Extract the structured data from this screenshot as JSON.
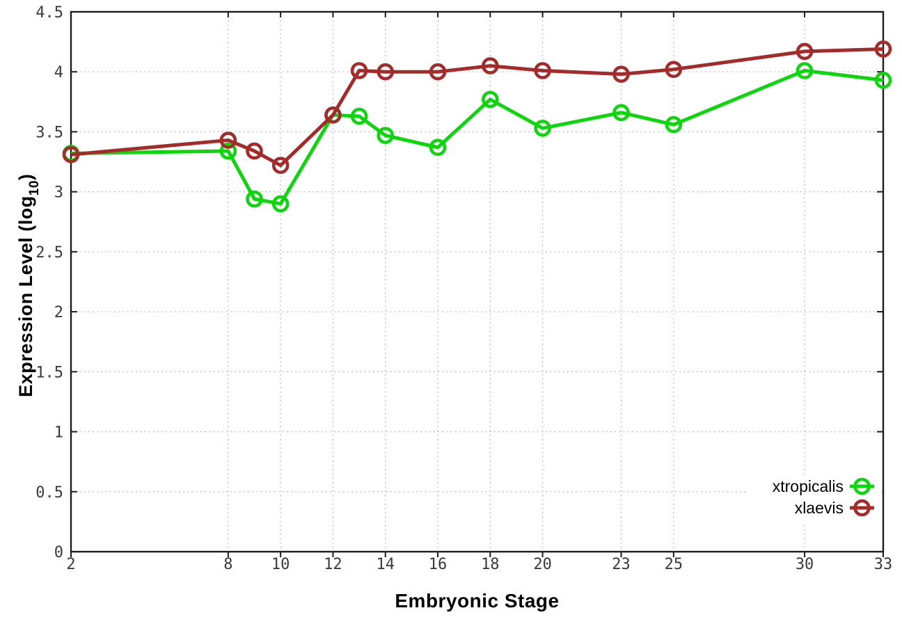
{
  "figure": {
    "xlabel": "Embryonic Stage",
    "ylabel_prefix": "Expression Level (log",
    "ylabel_sub": "10",
    "ylabel_suffix": ")"
  },
  "colors": {
    "xtropicalis": "#0cd60c",
    "xlaevis": "#a52a2a",
    "grid": "#b8b8b8",
    "border": "#1c1c1c",
    "tick_text": "#3a3a3a",
    "legend_text": "#000000",
    "background": "#ffffff"
  },
  "chart_data": {
    "type": "line",
    "title": "",
    "xlabel": "Embryonic Stage",
    "ylabel": "Expression Level (log10)",
    "xlim": [
      2,
      33
    ],
    "ylim": [
      0,
      4.5
    ],
    "grid": true,
    "legend_position": "bottom-right",
    "x_ticks": [
      2,
      8,
      10,
      12,
      14,
      16,
      18,
      20,
      23,
      25,
      30,
      33
    ],
    "y_ticks": [
      0,
      0.5,
      1,
      1.5,
      2,
      2.5,
      3,
      3.5,
      4,
      4.5
    ],
    "x": [
      2,
      8,
      9,
      10,
      12,
      13,
      14,
      16,
      18,
      20,
      23,
      25,
      30,
      33
    ],
    "series": [
      {
        "name": "xtropicalis",
        "color": "#0cd60c",
        "values": [
          3.32,
          3.34,
          2.94,
          2.9,
          3.64,
          3.63,
          3.47,
          3.37,
          3.77,
          3.53,
          3.66,
          3.56,
          4.01,
          3.93
        ]
      },
      {
        "name": "xlaevis",
        "color": "#a52a2a",
        "values": [
          3.31,
          3.43,
          3.34,
          3.22,
          3.64,
          4.01,
          4.0,
          4.0,
          4.05,
          4.01,
          3.98,
          4.02,
          4.17,
          4.19
        ]
      }
    ]
  }
}
